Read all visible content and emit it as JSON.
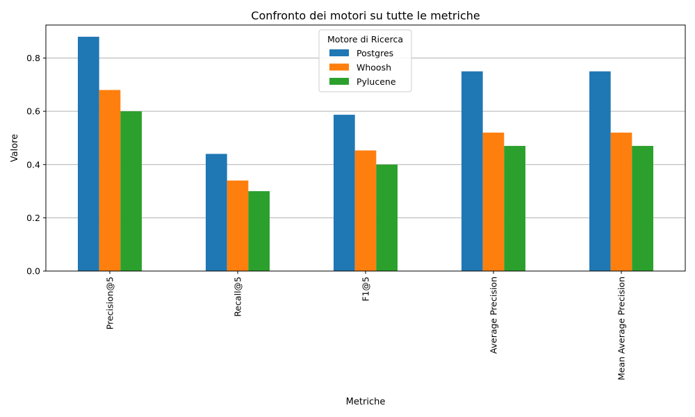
{
  "chart_data": {
    "type": "bar",
    "title": "Confronto dei motori su tutte le metriche",
    "xlabel": "Metriche",
    "ylabel": "Valore",
    "categories": [
      "Precision@5",
      "Recall@5",
      "F1@5",
      "Average Precision",
      "Mean Average Precision"
    ],
    "series": [
      {
        "name": "Postgres",
        "values": [
          0.88,
          0.44,
          0.587,
          0.75,
          0.75
        ],
        "color": "#1f77b4"
      },
      {
        "name": "Whoosh",
        "values": [
          0.68,
          0.34,
          0.453,
          0.52,
          0.52
        ],
        "color": "#ff7f0e"
      },
      {
        "name": "Pylucene",
        "values": [
          0.6,
          0.3,
          0.4,
          0.47,
          0.47
        ],
        "color": "#2ca02c"
      }
    ],
    "ylim": [
      0,
      0.924
    ],
    "yticks": [
      "0.0",
      "0.2",
      "0.4",
      "0.6",
      "0.8"
    ],
    "grid": "y",
    "legend": {
      "title": "Motore di Ricerca",
      "placement": "top-center"
    }
  }
}
